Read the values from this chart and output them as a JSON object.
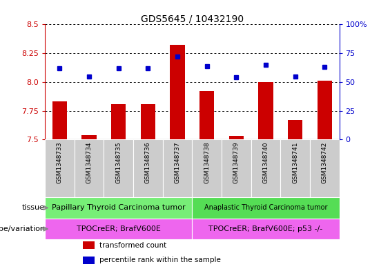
{
  "title": "GDS5645 / 10432190",
  "samples": [
    "GSM1348733",
    "GSM1348734",
    "GSM1348735",
    "GSM1348736",
    "GSM1348737",
    "GSM1348738",
    "GSM1348739",
    "GSM1348740",
    "GSM1348741",
    "GSM1348742"
  ],
  "transformed_count": [
    7.83,
    7.54,
    7.81,
    7.81,
    8.32,
    7.92,
    7.53,
    8.0,
    7.67,
    8.01
  ],
  "percentile_rank": [
    62,
    55,
    62,
    62,
    72,
    64,
    54,
    65,
    55,
    63
  ],
  "ylim_left": [
    7.5,
    8.5
  ],
  "ylim_right": [
    0,
    100
  ],
  "yticks_left": [
    7.5,
    7.75,
    8.0,
    8.25,
    8.5
  ],
  "yticks_right": [
    0,
    25,
    50,
    75,
    100
  ],
  "bar_color": "#cc0000",
  "dot_color": "#0000cc",
  "tissue_groups": [
    {
      "label": "Papillary Thyroid Carcinoma tumor",
      "start": 0,
      "end": 5,
      "color": "#77ee77"
    },
    {
      "label": "Anaplastic Thyroid Carcinoma tumor",
      "start": 5,
      "end": 10,
      "color": "#55dd55"
    }
  ],
  "genotype_groups": [
    {
      "label": "TPOCreER; BrafV600E",
      "start": 0,
      "end": 5,
      "color": "#ee66ee"
    },
    {
      "label": "TPOCreER; BrafV600E; p53 -/-",
      "start": 5,
      "end": 10,
      "color": "#ee66ee"
    }
  ],
  "tissue_label": "tissue",
  "genotype_label": "genotype/variation",
  "legend_items": [
    {
      "color": "#cc0000",
      "label": "transformed count"
    },
    {
      "color": "#0000cc",
      "label": "percentile rank within the sample"
    }
  ],
  "left_axis_color": "#cc0000",
  "right_axis_color": "#0000cc",
  "sample_bg_color": "#cccccc"
}
